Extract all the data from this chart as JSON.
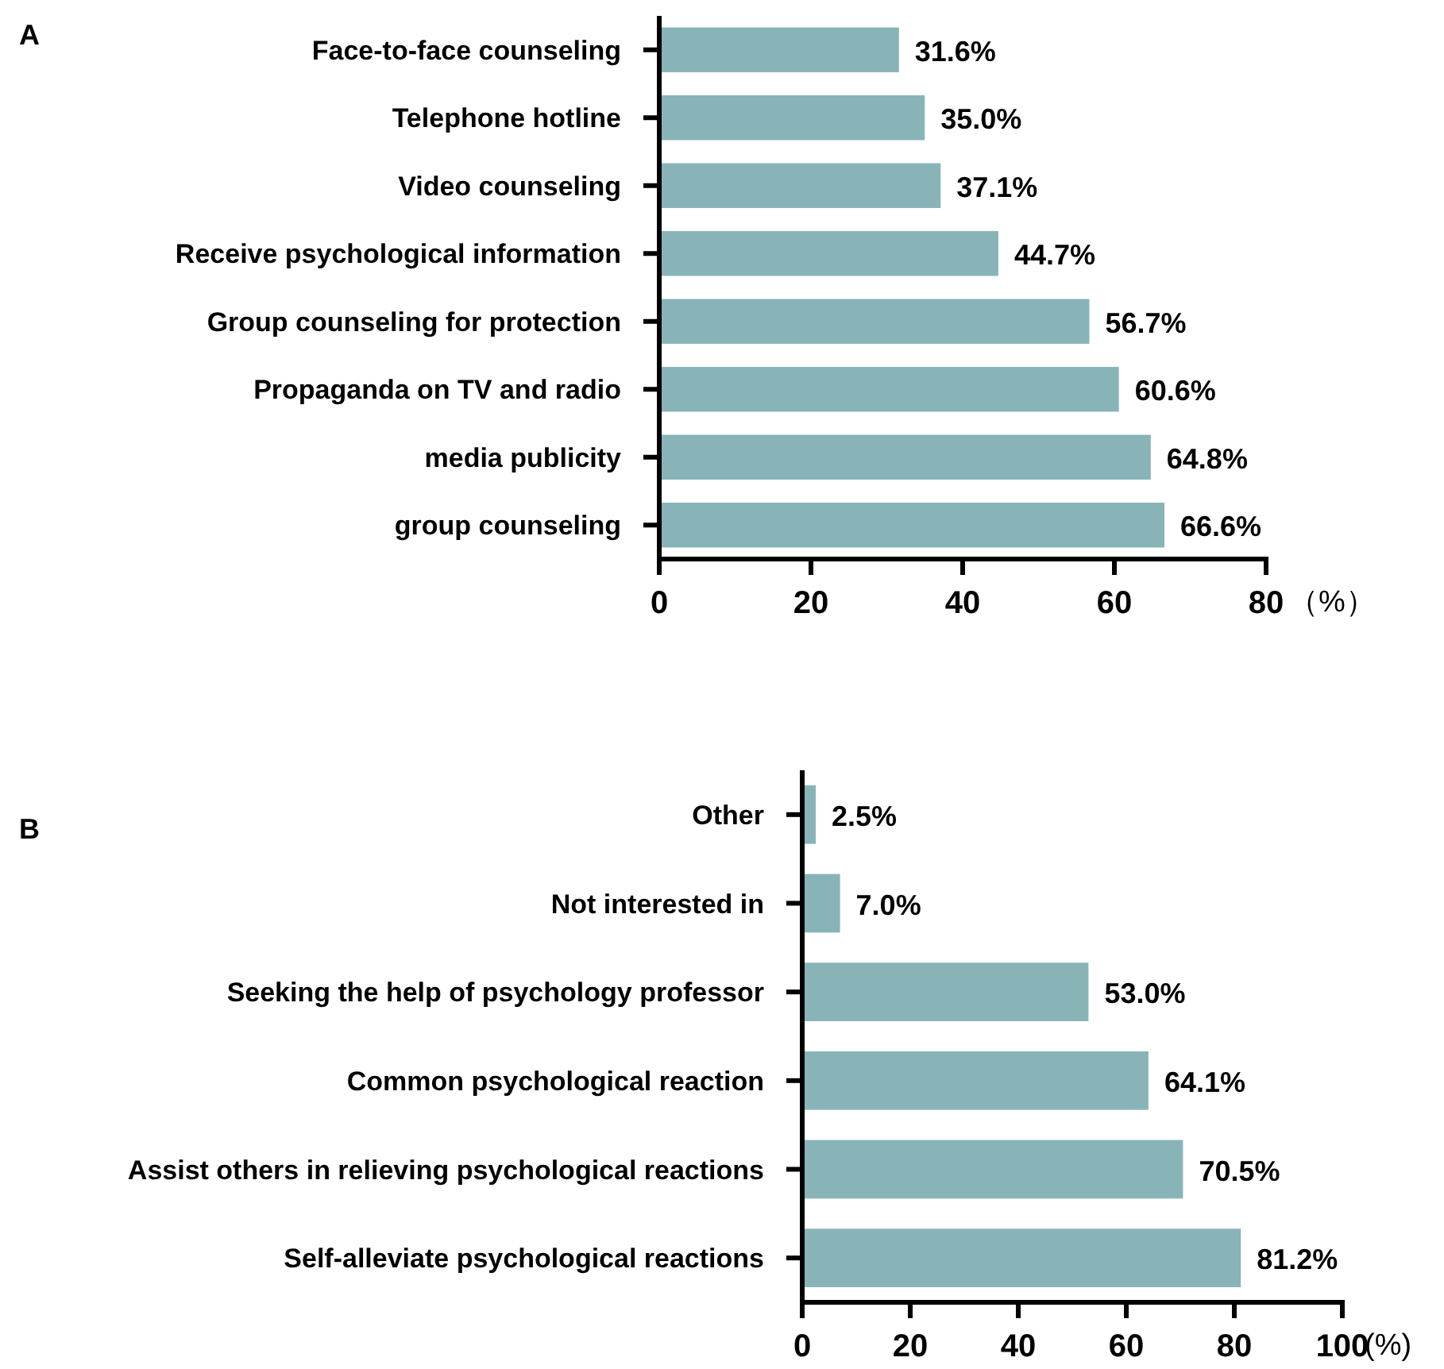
{
  "chart_data": [
    {
      "type": "bar",
      "title": "A",
      "orientation": "horizontal",
      "xlabel": "（%）",
      "categories": [
        "Face-to-face counseling",
        "Telephone hotline",
        "Video counseling",
        "Receive psychological information",
        "Group counseling for protection",
        "Propaganda on TV and radio",
        "media publicity",
        "group counseling"
      ],
      "values": [
        31.6,
        35.0,
        37.1,
        44.7,
        56.7,
        60.6,
        64.8,
        66.6
      ],
      "value_labels": [
        "31.6%",
        "35.0%",
        "37.1%",
        "44.7%",
        "56.7%",
        "60.6%",
        "64.8%",
        "66.6%"
      ],
      "color": "#88b4b8",
      "xlim": [
        0,
        80
      ],
      "xticks": [
        0,
        20,
        40,
        60,
        80
      ],
      "grid": false
    },
    {
      "type": "bar",
      "title": "B",
      "orientation": "horizontal",
      "xlabel": "(%)",
      "categories": [
        "Other",
        "Not interested in",
        "Seeking the help of psychology professor",
        "Common psychological reaction",
        "Assist others in relieving psychological reactions",
        "Self-alleviate psychological reactions"
      ],
      "values": [
        2.5,
        7.0,
        53.0,
        64.1,
        70.5,
        81.2
      ],
      "value_labels": [
        "2.5%",
        "7.0%",
        "53.0%",
        "64.1%",
        "70.5%",
        "81.2%"
      ],
      "color": "#88b4b8",
      "xlim": [
        0,
        100
      ],
      "xticks": [
        0,
        20,
        40,
        60,
        80,
        100
      ],
      "grid": false
    }
  ]
}
